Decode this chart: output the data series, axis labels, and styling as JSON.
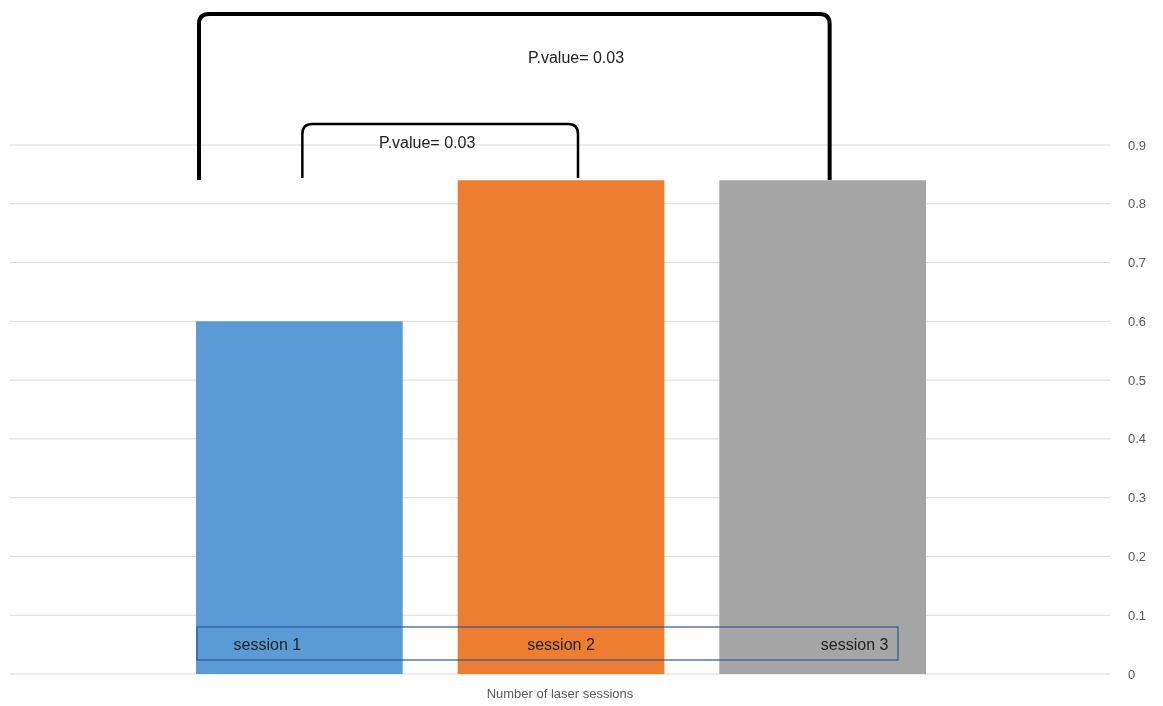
{
  "chart_data": {
    "type": "bar",
    "xlabel": "Number of laser sessions",
    "categories": [
      "session 1",
      "session 2",
      "session 3"
    ],
    "values": [
      0.6,
      0.84,
      0.84
    ],
    "colors": [
      "#5b9bd5",
      "#ed7d31",
      "#a5a5a5"
    ],
    "ylim": [
      0,
      0.9
    ],
    "yticks": [
      0,
      0.1,
      0.2,
      0.3,
      0.4,
      0.5,
      0.6,
      0.7,
      0.8,
      0.9
    ],
    "grid": "y",
    "annotations": [
      "P.value= 0.03",
      "P.value= 0.03"
    ]
  }
}
